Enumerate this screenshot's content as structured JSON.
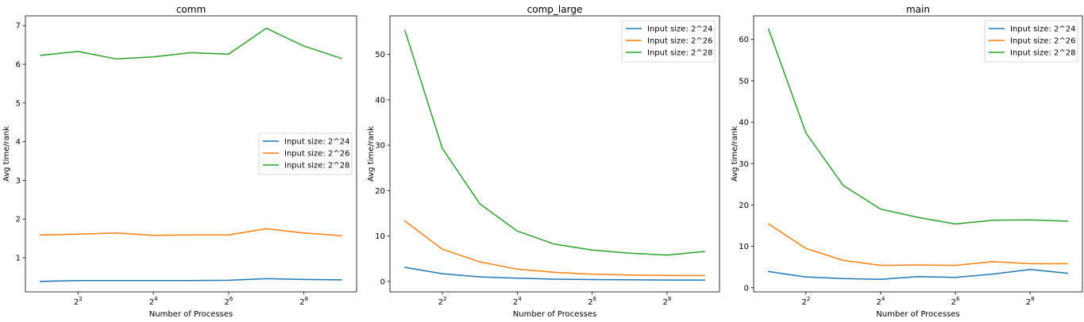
{
  "chart_data": [
    {
      "type": "line",
      "title": "comm",
      "xlabel": "Number of Processes",
      "ylabel": "Avg time/rank",
      "x": [
        2,
        4,
        8,
        16,
        32,
        64,
        128,
        256,
        512
      ],
      "xscale": "log2",
      "xticks": [
        4,
        16,
        64,
        256
      ],
      "xtick_labels": [
        {
          "base": "2",
          "exp": "2"
        },
        {
          "base": "2",
          "exp": "4"
        },
        {
          "base": "2",
          "exp": "6"
        },
        {
          "base": "2",
          "exp": "8"
        }
      ],
      "ylim": [
        0.12,
        7.25
      ],
      "yticks": [
        1,
        2,
        3,
        4,
        5,
        6,
        7
      ],
      "ytick_labels": [
        "1",
        "2",
        "3",
        "4",
        "5",
        "6",
        "7"
      ],
      "legend_position": "center-right",
      "series": [
        {
          "name": "Input size: 2^24",
          "color": "#1f77b4",
          "values": [
            0.39,
            0.41,
            0.41,
            0.41,
            0.41,
            0.42,
            0.46,
            0.44,
            0.43
          ]
        },
        {
          "name": "Input size: 2^26",
          "color": "#ff7f0e",
          "values": [
            1.59,
            1.61,
            1.64,
            1.58,
            1.59,
            1.59,
            1.75,
            1.64,
            1.57
          ]
        },
        {
          "name": "Input size: 2^28",
          "color": "#2ca02c",
          "values": [
            6.23,
            6.33,
            6.14,
            6.19,
            6.3,
            6.26,
            6.93,
            6.47,
            6.15
          ]
        }
      ]
    },
    {
      "type": "line",
      "title": "comp_large",
      "xlabel": "Number of Processes",
      "ylabel": "Avg time/rank",
      "x": [
        2,
        4,
        8,
        16,
        32,
        64,
        128,
        256,
        512
      ],
      "xscale": "log2",
      "xticks": [
        4,
        16,
        64,
        256
      ],
      "xtick_labels": [
        {
          "base": "2",
          "exp": "2"
        },
        {
          "base": "2",
          "exp": "4"
        },
        {
          "base": "2",
          "exp": "6"
        },
        {
          "base": "2",
          "exp": "8"
        }
      ],
      "ylim": [
        -2.3,
        58.5
      ],
      "yticks": [
        0,
        10,
        20,
        30,
        40,
        50
      ],
      "ytick_labels": [
        "0",
        "10",
        "20",
        "30",
        "40",
        "50"
      ],
      "legend_position": "top-right",
      "series": [
        {
          "name": "Input size: 2^24",
          "color": "#1f77b4",
          "values": [
            3.1,
            1.7,
            1.0,
            0.7,
            0.5,
            0.4,
            0.35,
            0.3,
            0.3
          ]
        },
        {
          "name": "Input size: 2^26",
          "color": "#ff7f0e",
          "values": [
            13.3,
            7.1,
            4.3,
            2.7,
            2.0,
            1.6,
            1.4,
            1.3,
            1.3
          ]
        },
        {
          "name": "Input size: 2^28",
          "color": "#2ca02c",
          "values": [
            55.3,
            29.3,
            17.1,
            11.1,
            8.2,
            6.9,
            6.2,
            5.8,
            6.6
          ]
        }
      ]
    },
    {
      "type": "line",
      "title": "main",
      "xlabel": "Number of Processes",
      "ylabel": "Avg time/rank",
      "x": [
        2,
        4,
        8,
        16,
        32,
        64,
        128,
        256,
        512
      ],
      "xscale": "log2",
      "xticks": [
        4,
        16,
        64,
        256
      ],
      "xtick_labels": [
        {
          "base": "2",
          "exp": "2"
        },
        {
          "base": "2",
          "exp": "4"
        },
        {
          "base": "2",
          "exp": "6"
        },
        {
          "base": "2",
          "exp": "8"
        }
      ],
      "ylim": [
        -1.0,
        65.7
      ],
      "yticks": [
        0,
        10,
        20,
        30,
        40,
        50,
        60
      ],
      "ytick_labels": [
        "0",
        "10",
        "20",
        "30",
        "40",
        "50",
        "60"
      ],
      "legend_position": "top-right",
      "series": [
        {
          "name": "Input size: 2^24",
          "color": "#1f77b4",
          "values": [
            3.9,
            2.6,
            2.2,
            2.0,
            2.7,
            2.5,
            3.3,
            4.4,
            3.5
          ]
        },
        {
          "name": "Input size: 2^26",
          "color": "#ff7f0e",
          "values": [
            15.4,
            9.5,
            6.6,
            5.4,
            5.5,
            5.4,
            6.3,
            5.8,
            5.8
          ]
        },
        {
          "name": "Input size: 2^28",
          "color": "#2ca02c",
          "values": [
            62.5,
            37.4,
            24.7,
            19.0,
            17.0,
            15.4,
            16.3,
            16.4,
            16.1
          ]
        }
      ]
    }
  ]
}
